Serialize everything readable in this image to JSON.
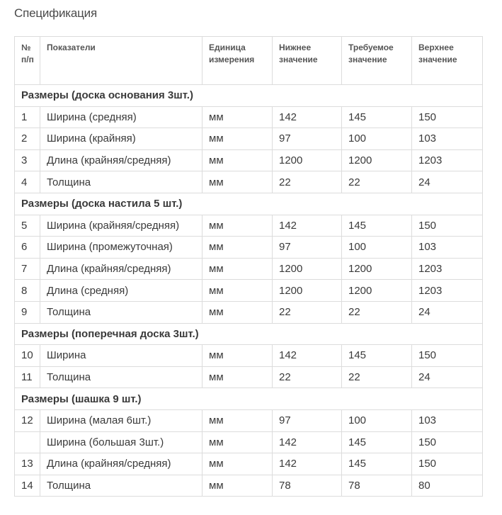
{
  "title": "Спецификация",
  "headers": [
    "№ п/п",
    "Показатели",
    "Единица измерения",
    "Нижнее значение",
    "Требуемое значение",
    "Верхнее значение"
  ],
  "sections": [
    {
      "title": "Размеры (доска основания 3шт.)",
      "rows": [
        {
          "num": "1",
          "name": "Ширина (средняя)",
          "unit": "мм",
          "low": "142",
          "req": "145",
          "high": "150"
        },
        {
          "num": "2",
          "name": "Ширина (крайняя)",
          "unit": "мм",
          "low": "97",
          "req": "100",
          "high": "103"
        },
        {
          "num": "3",
          "name": "Длина (крайняя/средняя)",
          "unit": "мм",
          "low": "1200",
          "req": "1200",
          "high": "1203"
        },
        {
          "num": "4",
          "name": "Толщина",
          "unit": "мм",
          "low": "22",
          "req": "22",
          "high": "24"
        }
      ]
    },
    {
      "title": "Размеры (доска настила 5 шт.)",
      "rows": [
        {
          "num": "5",
          "name": "Ширина (крайняя/средняя)",
          "unit": "мм",
          "low": "142",
          "req": "145",
          "high": "150"
        },
        {
          "num": "6",
          "name": "Ширина (промежуточная)",
          "unit": "мм",
          "low": "97",
          "req": "100",
          "high": "103"
        },
        {
          "num": "7",
          "name": "Длина (крайняя/средняя)",
          "unit": "мм",
          "low": "1200",
          "req": "1200",
          "high": "1203"
        },
        {
          "num": "8",
          "name": "Длина (средняя)",
          "unit": "мм",
          "low": "1200",
          "req": "1200",
          "high": "1203"
        },
        {
          "num": "9",
          "name": "Толщина",
          "unit": "мм",
          "low": "22",
          "req": "22",
          "high": "24"
        }
      ]
    },
    {
      "title": "Размеры (поперечная доска 3шт.)",
      "rows": [
        {
          "num": "10",
          "name": "Ширина",
          "unit": "мм",
          "low": "142",
          "req": "145",
          "high": "150"
        },
        {
          "num": "11",
          "name": "Толщина",
          "unit": "мм",
          "low": "22",
          "req": "22",
          "high": "24"
        }
      ]
    },
    {
      "title": "Размеры (шашка 9 шт.)",
      "rows": [
        {
          "num": "12",
          "name": "Ширина (малая 6шт.)",
          "unit": "мм",
          "low": "97",
          "req": "100",
          "high": "103"
        },
        {
          "num": "",
          "name": "Ширина (большая 3шт.)",
          "unit": "мм",
          "low": "142",
          "req": "145",
          "high": "150"
        },
        {
          "num": "13",
          "name": "Длина (крайняя/средняя)",
          "unit": "мм",
          "low": "142",
          "req": "145",
          "high": "150"
        },
        {
          "num": "14",
          "name": "Толщина",
          "unit": "мм",
          "low": "78",
          "req": "78",
          "high": "80"
        }
      ]
    }
  ]
}
